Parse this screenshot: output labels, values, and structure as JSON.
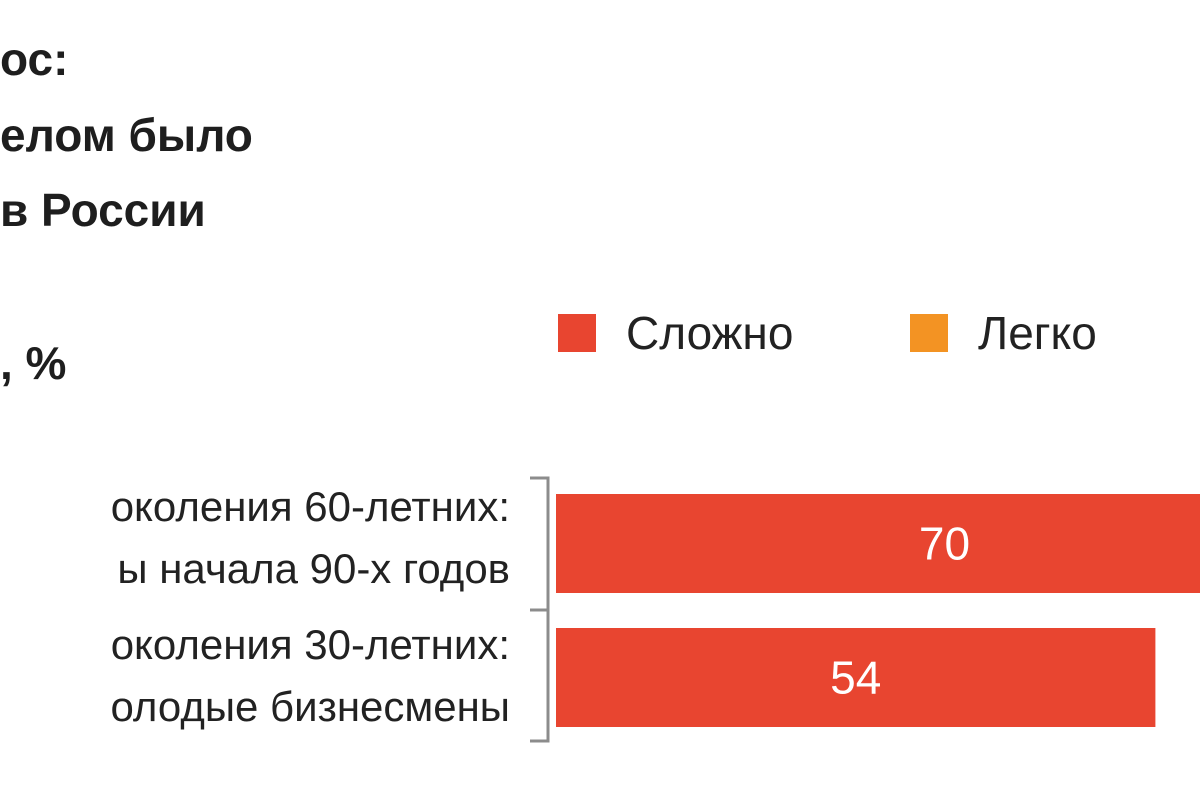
{
  "chart_data": {
    "type": "bar",
    "orientation": "horizontal",
    "stacked": true,
    "title_lines": [
      "ос:",
      "елом было",
      "в России"
    ],
    "unit_text": ", %",
    "categories": [
      [
        "околения 60-летних:",
        "ы начала 90-х годов"
      ],
      [
        "околения 30-летних:",
        "олодые бизнесмены"
      ]
    ],
    "series": [
      {
        "name": "Сложно",
        "color": "#e84530",
        "values": [
          70,
          54
        ]
      },
      {
        "name": "Легко",
        "color": "#f39323",
        "values": [
          null,
          null
        ]
      }
    ],
    "data_labels": [
      "70",
      "54"
    ],
    "legend_position": "top-right",
    "grid": false
  }
}
